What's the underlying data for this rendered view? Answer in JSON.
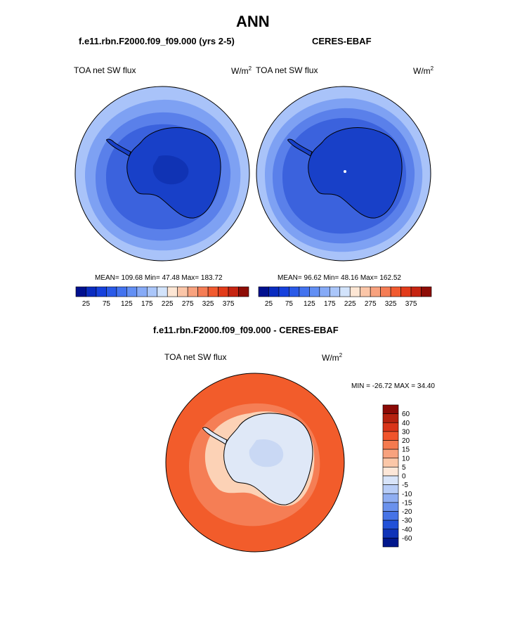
{
  "page": {
    "title": "ANN",
    "left_panel_title": "f.e11.rbn.F2000.f09_f09.000 (yrs 2-5)",
    "right_panel_title": "CERES-EBAF",
    "diff_title": "f.e11.rbn.F2000.f09_f09.000 - CERES-EBAF"
  },
  "panels": {
    "left": {
      "variable": "TOA net SW flux",
      "units": "W/m",
      "units_sup": "2",
      "stats": "MEAN= 109.68  Min=  47.48  Max= 183.72"
    },
    "right": {
      "variable": "TOA net SW flux",
      "units": "W/m",
      "units_sup": "2",
      "stats": "MEAN=  96.62  Min=  48.16  Max= 162.52"
    },
    "diff": {
      "variable": "TOA net SW flux",
      "units": "W/m",
      "units_sup": "2",
      "minmax": "MIN = -26.72 MAX =  34.40"
    }
  },
  "colorbars": {
    "horizontal": {
      "colors": [
        "#00108f",
        "#0a2cc0",
        "#1641dd",
        "#2a5ae8",
        "#4373ef",
        "#628ff4",
        "#86aaf7",
        "#aac6fa",
        "#d2e3fb",
        "#fde6d4",
        "#fbc6a8",
        "#f8a27e",
        "#f57d55",
        "#f15a2f",
        "#e23b1a",
        "#c62411",
        "#8e0d06"
      ],
      "labels": [
        "25",
        "75",
        "125",
        "175",
        "225",
        "275",
        "325",
        "375"
      ]
    },
    "vertical": {
      "colors": [
        "#8b0a06",
        "#b5210f",
        "#d93419",
        "#f0542b",
        "#f47a4f",
        "#f8a27e",
        "#fbc7a8",
        "#fde7d8",
        "#d8e4f9",
        "#b8cdf7",
        "#8faef2",
        "#6a91ec",
        "#4673e6",
        "#2251d8",
        "#0f33b8",
        "#01178c"
      ],
      "labels": [
        "60",
        "40",
        "30",
        "20",
        "15",
        "10",
        "5",
        "0",
        "-5",
        "-10",
        "-15",
        "-20",
        "-30",
        "-40",
        "-60"
      ]
    }
  },
  "maps": {
    "left_rings": [
      "#a9c3f9",
      "#7ea1f3",
      "#5a80ea",
      "#3b62dd",
      "#2247cf"
    ],
    "right_rings": [
      "#a9c3f9",
      "#7ea1f3",
      "#5a80ea",
      "#3b62dd",
      "#2247cf"
    ],
    "continent_fill": "#1840c8",
    "interior_fill": "#1033b4",
    "diff_ring": "#f25c2b",
    "diff_inner": "#f57e55",
    "diff_coast": "#fcd2b6",
    "diff_continent": "#dfe8f7"
  }
}
